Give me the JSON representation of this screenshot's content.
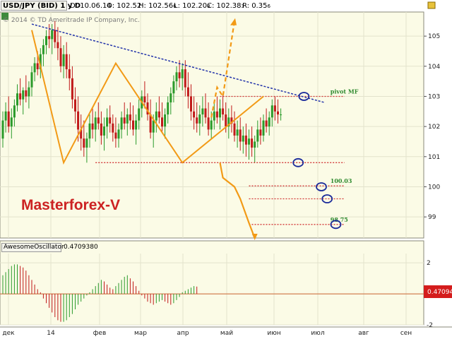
{
  "header": {
    "symbol": "USD/JPY (BID) 1 y D",
    "date": "D: 10.06.14",
    "open": "O: 102.52",
    "high": "H: 102.56",
    "high_sub": "6",
    "low": "L: 102.20",
    "low_sub": "8",
    "close": "C: 102.38",
    "close_sub": "3",
    "range": "R: 0.35",
    "range_sub": "6"
  },
  "watermark": "© 2014 © TD Ameritrade IP Company, Inc.",
  "brand": "Masterforex-V",
  "oscillator": {
    "name": "AwesomeOscillator",
    "value": "0.470938",
    "zero": "0",
    "badge": "0.47094"
  },
  "colors": {
    "background": "#fbfbe6",
    "grid": "#e3e3cc",
    "up": "#2a9a2a",
    "down": "#c01a1a",
    "pattern": "#f29a16",
    "trendline": "#2233aa",
    "level": "#d23a3a",
    "circle": "#1a2a9a",
    "label_green": "#2f8a2f",
    "badge": "#d41c1c"
  },
  "chart_data": [
    {
      "type": "candlestick",
      "title": "USD/JPY (BID) 1 y D",
      "yaxis": {
        "ticks": [
          99,
          100,
          101,
          102,
          103,
          104,
          105
        ],
        "range": [
          98.3,
          105.8
        ]
      },
      "xaxis": {
        "ticks": [
          "дек",
          "14",
          "фев",
          "мар",
          "апр",
          "май",
          "июн",
          "июл",
          "авг",
          "сен"
        ]
      },
      "grid": true,
      "series": [
        {
          "name": "price",
          "values": [
            [
              101.6,
              102.5,
              101.3,
              102.2
            ],
            [
              102.2,
              102.8,
              101.8,
              102.5
            ],
            [
              102.5,
              103.0,
              101.8,
              102.0
            ],
            [
              102.0,
              102.6,
              101.6,
              102.3
            ],
            [
              102.3,
              102.9,
              102.0,
              102.7
            ],
            [
              102.7,
              103.4,
              102.5,
              103.1
            ],
            [
              103.1,
              103.6,
              102.7,
              102.9
            ],
            [
              102.9,
              103.3,
              102.4,
              103.2
            ],
            [
              103.2,
              103.7,
              102.8,
              103.0
            ],
            [
              103.0,
              103.5,
              102.6,
              103.3
            ],
            [
              103.3,
              104.0,
              103.0,
              103.8
            ],
            [
              103.8,
              104.3,
              103.5,
              104.1
            ],
            [
              104.1,
              104.5,
              103.7,
              103.9
            ],
            [
              103.9,
              104.6,
              103.6,
              104.4
            ],
            [
              104.4,
              104.9,
              104.0,
              104.7
            ],
            [
              104.7,
              105.2,
              104.4,
              105.0
            ],
            [
              105.0,
              105.4,
              104.6,
              104.9
            ],
            [
              104.9,
              105.4,
              104.4,
              105.2
            ],
            [
              105.2,
              105.5,
              104.6,
              104.8
            ],
            [
              104.8,
              105.3,
              104.2,
              104.6
            ],
            [
              104.6,
              105.0,
              103.8,
              104.0
            ],
            [
              104.0,
              104.7,
              103.6,
              104.4
            ],
            [
              104.4,
              104.8,
              103.6,
              103.9
            ],
            [
              103.9,
              104.4,
              103.2,
              103.6
            ],
            [
              103.6,
              104.0,
              102.6,
              102.9
            ],
            [
              102.9,
              103.3,
              102.1,
              102.5
            ],
            [
              102.5,
              103.0,
              101.5,
              101.9
            ],
            [
              101.9,
              102.4,
              101.2,
              101.6
            ],
            [
              101.6,
              102.2,
              101.0,
              101.3
            ],
            [
              101.3,
              101.8,
              100.8,
              101.6
            ],
            [
              101.6,
              102.4,
              101.3,
              102.1
            ],
            [
              102.1,
              102.6,
              101.6,
              101.9
            ],
            [
              101.9,
              102.5,
              101.5,
              102.3
            ],
            [
              102.3,
              102.8,
              101.9,
              102.1
            ],
            [
              102.1,
              102.5,
              101.4,
              101.7
            ],
            [
              101.7,
              102.3,
              101.2,
              102.0
            ],
            [
              102.0,
              102.6,
              101.6,
              102.3
            ],
            [
              102.3,
              102.7,
              101.8,
              102.1
            ],
            [
              102.1,
              102.4,
              101.5,
              101.8
            ],
            [
              101.8,
              102.3,
              101.3,
              101.6
            ],
            [
              101.6,
              102.1,
              101.3,
              101.9
            ],
            [
              101.9,
              102.5,
              101.6,
              102.3
            ],
            [
              102.3,
              102.8,
              101.9,
              102.1
            ],
            [
              102.1,
              102.6,
              101.7,
              102.4
            ],
            [
              102.4,
              102.8,
              101.9,
              102.2
            ],
            [
              102.2,
              102.7,
              101.7,
              101.9
            ],
            [
              101.9,
              102.4,
              101.4,
              102.2
            ],
            [
              102.2,
              102.9,
              101.9,
              102.6
            ],
            [
              102.6,
              103.2,
              102.3,
              103.0
            ],
            [
              103.0,
              103.5,
              102.6,
              102.8
            ],
            [
              102.8,
              103.1,
              102.2,
              102.4
            ],
            [
              102.4,
              102.9,
              101.6,
              101.8
            ],
            [
              101.8,
              102.4,
              101.3,
              102.2
            ],
            [
              102.2,
              102.8,
              101.8,
              102.5
            ],
            [
              102.5,
              103.0,
              102.1,
              102.3
            ],
            [
              102.3,
              102.8,
              101.8,
              102.0
            ],
            [
              102.0,
              102.6,
              101.6,
              102.4
            ],
            [
              102.4,
              103.0,
              102.1,
              102.8
            ],
            [
              102.8,
              103.3,
              102.4,
              103.1
            ],
            [
              103.1,
              103.7,
              102.8,
              103.5
            ],
            [
              103.5,
              104.0,
              103.2,
              103.8
            ],
            [
              103.8,
              104.2,
              103.3,
              103.6
            ],
            [
              103.6,
              104.1,
              103.2,
              103.9
            ],
            [
              103.9,
              104.2,
              103.0,
              103.3
            ],
            [
              103.3,
              103.8,
              102.6,
              103.0
            ],
            [
              103.0,
              103.4,
              102.2,
              102.5
            ],
            [
              102.5,
              103.0,
              101.9,
              102.3
            ],
            [
              102.3,
              102.8,
              101.8,
              102.1
            ],
            [
              102.1,
              102.7,
              101.7,
              102.4
            ],
            [
              102.4,
              103.0,
              102.0,
              102.6
            ],
            [
              102.6,
              103.1,
              102.1,
              102.3
            ],
            [
              102.3,
              102.8,
              101.7,
              101.9
            ],
            [
              101.9,
              102.5,
              101.6,
              102.2
            ],
            [
              102.2,
              102.8,
              101.9,
              102.5
            ],
            [
              102.5,
              103.0,
              102.1,
              102.3
            ],
            [
              102.3,
              102.9,
              101.9,
              102.6
            ],
            [
              102.6,
              103.1,
              102.2,
              102.4
            ],
            [
              102.4,
              102.8,
              101.8,
              102.0
            ],
            [
              102.0,
              102.6,
              101.6,
              102.3
            ],
            [
              102.3,
              102.7,
              101.8,
              102.1
            ],
            [
              102.1,
              102.5,
              101.5,
              101.7
            ],
            [
              101.7,
              102.2,
              101.3,
              101.9
            ],
            [
              101.9,
              102.3,
              101.2,
              101.5
            ],
            [
              101.5,
              102.0,
              101.1,
              101.7
            ],
            [
              101.7,
              102.1,
              101.0,
              101.4
            ],
            [
              101.4,
              101.9,
              100.9,
              101.6
            ],
            [
              101.6,
              102.0,
              101.0,
              101.3
            ],
            [
              101.3,
              101.7,
              100.8,
              101.5
            ],
            [
              101.5,
              102.2,
              101.3,
              101.9
            ],
            [
              101.9,
              102.3,
              101.4,
              101.7
            ],
            [
              101.7,
              102.4,
              101.5,
              102.2
            ],
            [
              102.2,
              102.6,
              101.8,
              102.0
            ],
            [
              102.0,
              102.5,
              101.7,
              102.3
            ],
            [
              102.3,
              102.9,
              102.0,
              102.7
            ],
            [
              102.7,
              103.0,
              102.2,
              102.5
            ],
            [
              102.5,
              102.9,
              102.1,
              102.4
            ],
            [
              102.4,
              102.6,
              102.2,
              102.4
            ]
          ]
        }
      ],
      "levels": [
        {
          "value": 103.0,
          "label": "pivot MF"
        },
        {
          "value": 100.8
        },
        {
          "value": 100.03,
          "label": "100.03"
        },
        {
          "value": 99.6
        },
        {
          "value": 98.75,
          "label": "98.75"
        }
      ],
      "pattern_points": [
        [
          10,
          105.2
        ],
        [
          21,
          100.8
        ],
        [
          39,
          104.1
        ],
        [
          62,
          100.8
        ],
        [
          90,
          103.0
        ]
      ],
      "projection_down": [
        [
          75,
          100.8
        ],
        [
          76,
          100.3
        ],
        [
          80,
          100.0
        ],
        [
          82,
          99.6
        ],
        [
          85,
          98.8
        ],
        [
          87,
          98.3
        ]
      ],
      "projection_up": [
        [
          72,
          102.3
        ],
        [
          74,
          103.3
        ],
        [
          76,
          103.0
        ],
        [
          80,
          105.5
        ]
      ]
    },
    {
      "type": "bar",
      "title": "AwesomeOscillator",
      "yaxis": {
        "ticks": [
          -2,
          0,
          2
        ],
        "range": [
          -2.0,
          2.6
        ]
      },
      "series": [
        {
          "name": "AwesomeOscillator",
          "values": [
            1.2,
            1.4,
            1.6,
            1.8,
            1.9,
            1.9,
            1.8,
            1.7,
            1.5,
            1.2,
            0.9,
            0.6,
            0.3,
            0.1,
            -0.3,
            -0.6,
            -0.9,
            -1.2,
            -1.5,
            -1.7,
            -1.8,
            -1.8,
            -1.7,
            -1.5,
            -1.3,
            -1.0,
            -0.7,
            -0.5,
            -0.3,
            -0.1,
            0.1,
            0.3,
            0.5,
            0.7,
            0.9,
            0.8,
            0.6,
            0.4,
            0.3,
            0.5,
            0.7,
            0.9,
            1.1,
            1.2,
            1.0,
            0.8,
            0.5,
            0.2,
            -0.1,
            -0.3,
            -0.5,
            -0.6,
            -0.7,
            -0.6,
            -0.5,
            -0.4,
            -0.5,
            -0.6,
            -0.7,
            -0.6,
            -0.4,
            -0.2,
            0.1,
            0.2,
            0.3,
            0.4,
            0.5,
            0.47
          ]
        }
      ]
    }
  ]
}
